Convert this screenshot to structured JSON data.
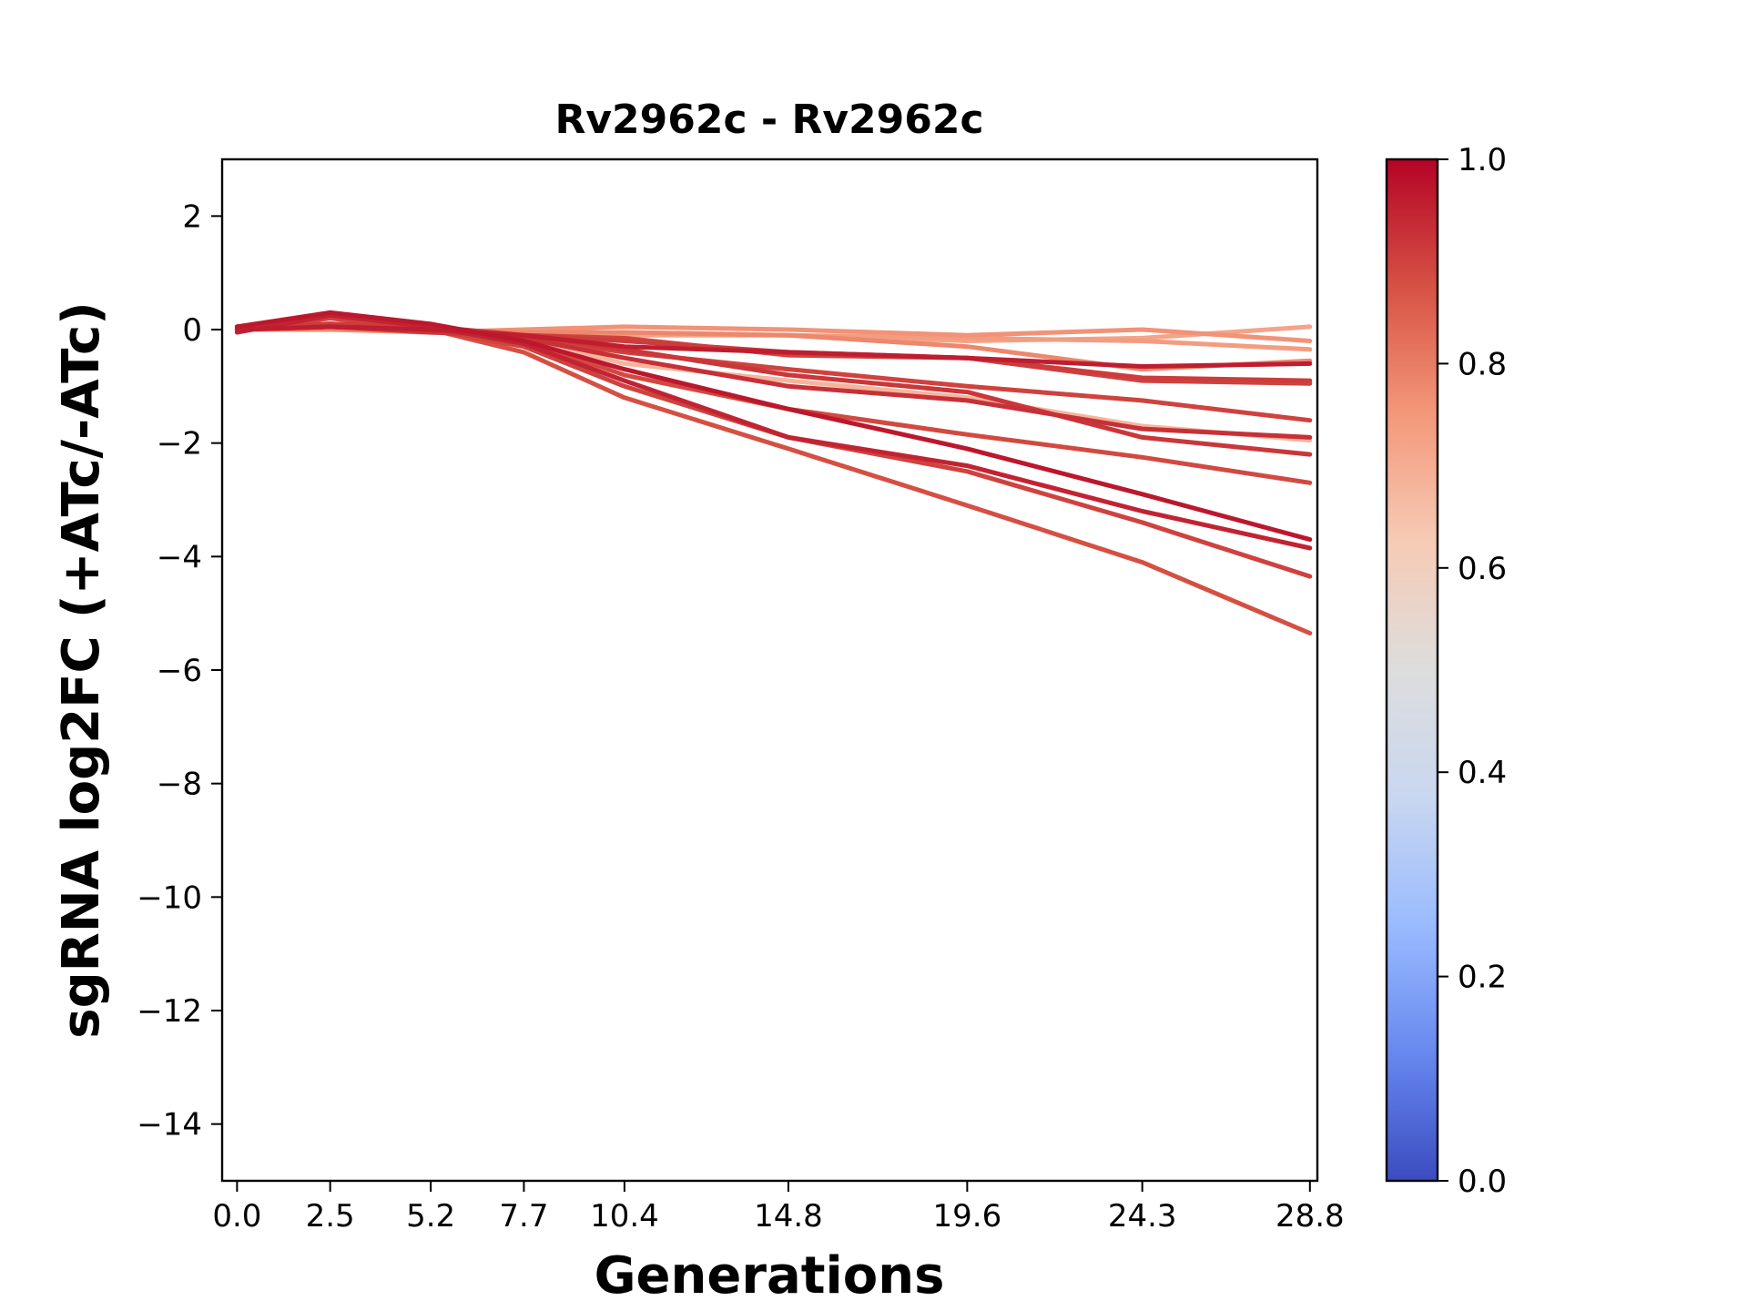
{
  "chart_data": {
    "type": "line",
    "title": "Rv2962c - Rv2962c",
    "xlabel": "Generations",
    "ylabel": "sgRNA log2FC (+ATc/-ATc)",
    "xlim": [
      -0.4,
      29.0
    ],
    "ylim": [
      -15,
      3
    ],
    "x_ticks": [
      0.0,
      2.5,
      5.2,
      7.7,
      10.4,
      14.8,
      19.6,
      24.3,
      28.8
    ],
    "x_tick_labels": [
      "0.0",
      "2.5",
      "5.2",
      "7.7",
      "10.4",
      "14.8",
      "19.6",
      "24.3",
      "28.8"
    ],
    "y_ticks": [
      2,
      0,
      -2,
      -4,
      -6,
      -8,
      -10,
      -12,
      -14
    ],
    "y_tick_labels": [
      "2",
      "0",
      "−2",
      "−4",
      "−6",
      "−8",
      "−10",
      "−12",
      "−14"
    ],
    "grid": false,
    "colorbar": {
      "range": [
        0.0,
        1.0
      ],
      "ticks": [
        0.0,
        0.2,
        0.4,
        0.6,
        0.8,
        1.0
      ],
      "tick_labels": [
        "0.0",
        "0.2",
        "0.4",
        "0.6",
        "0.8",
        "1.0"
      ],
      "colormap": "coolwarm",
      "stops": [
        "#3b4cc0",
        "#6788ee",
        "#9abbff",
        "#c9d7f0",
        "#dddddd",
        "#f6cbb6",
        "#f4987a",
        "#d65244",
        "#b40426"
      ]
    },
    "x": [
      0.0,
      2.5,
      5.2,
      7.7,
      10.4,
      14.8,
      19.6,
      24.3,
      28.8
    ],
    "series": [
      {
        "values": [
          0.05,
          0.3,
          0.1,
          -0.2,
          -0.7,
          -1.4,
          -2.1,
          -2.9,
          -3.7
        ],
        "score": 0.97
      },
      {
        "values": [
          -0.05,
          0.25,
          0.05,
          -0.25,
          -0.9,
          -1.9,
          -2.4,
          -3.2,
          -3.85
        ],
        "score": 0.95
      },
      {
        "values": [
          0.0,
          0.2,
          0.0,
          -0.3,
          -1.0,
          -1.9,
          -2.5,
          -3.4,
          -4.35
        ],
        "score": 0.9
      },
      {
        "values": [
          0.05,
          0.1,
          0.0,
          -0.4,
          -1.2,
          -2.1,
          -3.1,
          -4.1,
          -5.35
        ],
        "score": 0.88
      },
      {
        "values": [
          0.0,
          0.05,
          0.0,
          -0.15,
          -0.5,
          -1.0,
          -1.25,
          -1.75,
          -1.9
        ],
        "score": 0.93
      },
      {
        "values": [
          0.05,
          0.05,
          0.0,
          -0.15,
          -0.4,
          -0.7,
          -1.0,
          -1.25,
          -1.6
        ],
        "score": 0.9
      },
      {
        "values": [
          0.05,
          0.1,
          0.0,
          -0.2,
          -0.8,
          -1.4,
          -1.85,
          -2.25,
          -2.7
        ],
        "score": 0.89
      },
      {
        "values": [
          0.0,
          0.05,
          -0.05,
          -0.1,
          -0.35,
          -0.8,
          -1.1,
          -1.9,
          -2.2
        ],
        "score": 0.92
      },
      {
        "values": [
          0.05,
          0.05,
          0.0,
          -0.15,
          -0.6,
          -0.9,
          -1.2,
          -1.7,
          -1.95
        ],
        "score": 0.68
      },
      {
        "values": [
          0.0,
          0.1,
          0.05,
          -0.1,
          -0.2,
          -0.4,
          -0.5,
          -0.85,
          -0.9
        ],
        "score": 0.91
      },
      {
        "values": [
          0.0,
          0.05,
          0.0,
          -0.1,
          -0.15,
          -0.45,
          -0.5,
          -0.9,
          -0.95
        ],
        "score": 0.9
      },
      {
        "values": [
          0.0,
          0.05,
          0.0,
          -0.1,
          -0.3,
          -0.4,
          -0.5,
          -0.65,
          -0.6
        ],
        "score": 0.96
      },
      {
        "values": [
          0.0,
          0.0,
          -0.05,
          0.0,
          0.05,
          0.0,
          -0.1,
          0.0,
          -0.2
        ],
        "score": 0.76
      },
      {
        "values": [
          0.0,
          0.05,
          0.0,
          -0.05,
          -0.05,
          -0.1,
          -0.15,
          -0.2,
          -0.35
        ],
        "score": 0.74
      },
      {
        "values": [
          0.0,
          0.0,
          0.0,
          -0.05,
          -0.05,
          -0.1,
          -0.3,
          -0.7,
          -0.55
        ],
        "score": 0.78
      },
      {
        "values": [
          0.0,
          0.0,
          0.0,
          -0.05,
          -0.1,
          -0.1,
          -0.2,
          -0.15,
          0.05
        ],
        "score": 0.72
      }
    ]
  }
}
